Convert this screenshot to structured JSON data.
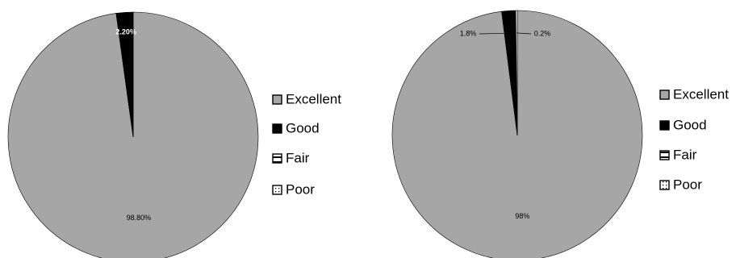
{
  "chart_data": [
    {
      "type": "pie",
      "categories": [
        "Excellent",
        "Good",
        "Fair",
        "Poor"
      ],
      "values": [
        98.8,
        2.2,
        0,
        0
      ],
      "value_labels": [
        "98.80%",
        "2.20%",
        null,
        null
      ],
      "colors": [
        "#a6a6a6",
        "#000000",
        "#ffffff",
        "#ffffff"
      ],
      "patterns": [
        null,
        null,
        "stripes",
        "dots"
      ]
    },
    {
      "type": "pie",
      "categories": [
        "Excellent",
        "Good",
        "Fair",
        "Poor"
      ],
      "values": [
        98,
        1.8,
        0,
        0.2
      ],
      "value_labels": [
        "98%",
        "1.8%",
        null,
        "0.2%"
      ],
      "colors": [
        "#a6a6a6",
        "#000000",
        "#ffffff",
        "#ffffff"
      ],
      "patterns": [
        null,
        null,
        "stripes",
        "dots"
      ]
    }
  ]
}
